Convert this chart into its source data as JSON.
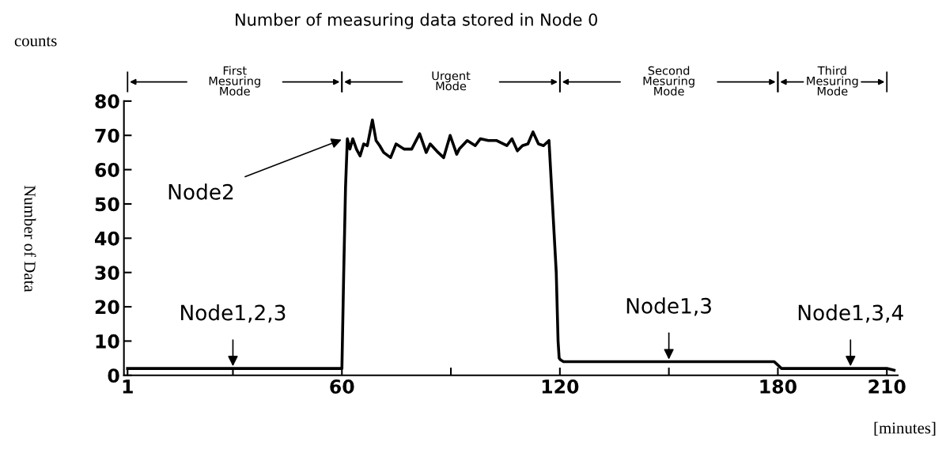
{
  "chart_data": {
    "type": "line",
    "title": "Number of measuring data stored in Node 0",
    "xlabel": "[minutes]",
    "ylabel": "Number of Data",
    "series": [
      {
        "color": "#000000",
        "x": [
          1,
          10,
          20,
          30,
          40,
          50,
          60,
          60.5,
          61,
          61.5,
          62.2,
          63,
          64,
          65,
          66,
          67,
          68.4,
          69.4,
          70.4,
          71.5,
          73.4,
          74.9,
          77.1,
          79.2,
          81.4,
          83.2,
          84.3,
          86.5,
          88,
          89.8,
          91.6,
          92.3,
          94.5,
          96.7,
          98.1,
          100.3,
          102.5,
          105.4,
          106.8,
          108.3,
          109.7,
          111.2,
          112.6,
          114.1,
          115.5,
          117,
          119,
          119.5,
          119.8,
          120.2,
          121,
          130,
          140,
          150,
          160,
          170,
          179,
          181,
          190,
          200,
          210,
          212
        ],
        "values": [
          2,
          2,
          2,
          2,
          2,
          2,
          2,
          30,
          55,
          69,
          66,
          69,
          66,
          64,
          67.5,
          67,
          74.5,
          68.5,
          67,
          65,
          63.5,
          67.5,
          66,
          66,
          70.5,
          65,
          67.5,
          65,
          63.5,
          70,
          64.5,
          66,
          68.5,
          67,
          69,
          68.5,
          68.5,
          67,
          69,
          65.5,
          67,
          67.5,
          71,
          67.5,
          67,
          68.5,
          30,
          10,
          5,
          4.5,
          4,
          4,
          4,
          4,
          4,
          4,
          4,
          2,
          2,
          2,
          2,
          1.5
        ]
      }
    ],
    "xlim": [
      0,
      213
    ],
    "ylim": [
      0,
      80
    ],
    "xticks": [
      1,
      {
        "value": 30,
        "label": null
      },
      60,
      {
        "value": 90,
        "label": null
      },
      120,
      {
        "value": 150,
        "label": null
      },
      180,
      210
    ],
    "yticks": [
      0,
      10,
      20,
      30,
      40,
      50,
      60,
      70,
      80
    ],
    "grid": false,
    "legend": false,
    "marker": "none",
    "line_style": "solid",
    "annotations": [
      "counts",
      "First\nMesuring\nMode",
      "Urgent\nMode",
      "Second\nMesuring\nMode",
      "Third\nMesuring\nMode",
      {
        "text": "Node2",
        "x": 60.5,
        "y": 69
      },
      {
        "text": "Node1,2,3",
        "x": 30,
        "y": 2
      },
      {
        "text": "Node1,3",
        "x": 150,
        "y": 4
      },
      {
        "text": "Node1,3,4",
        "x": 200,
        "y": 2
      }
    ]
  }
}
